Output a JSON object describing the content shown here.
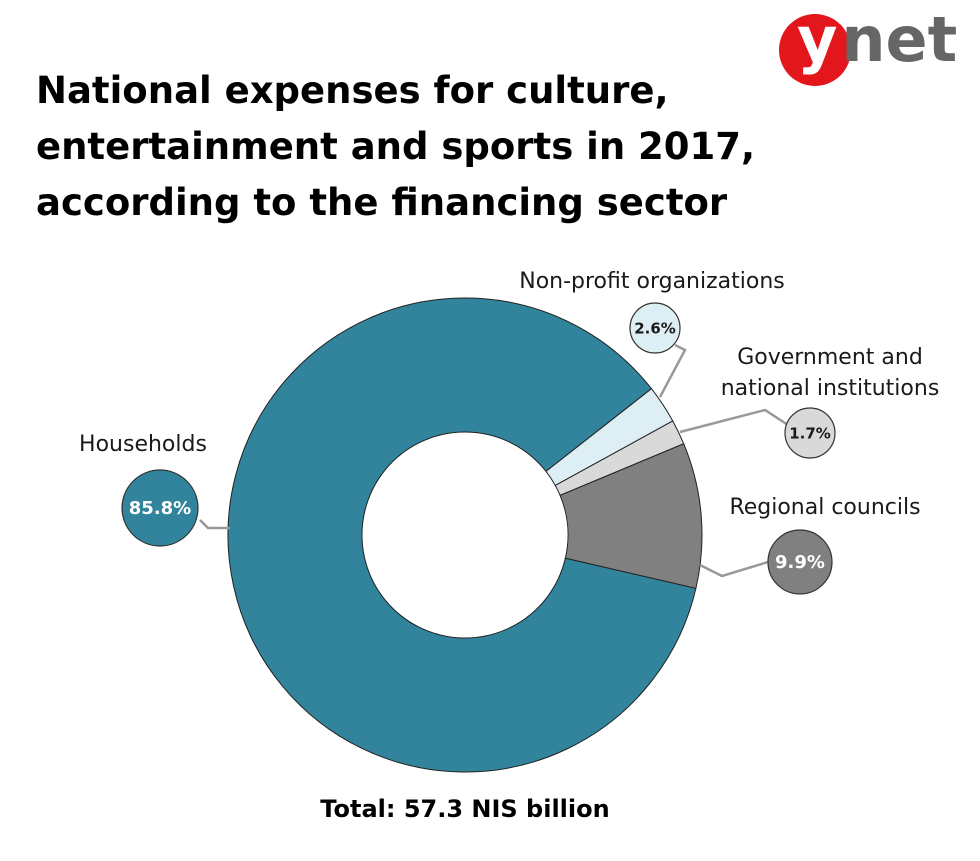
{
  "chart_data": {
    "type": "pie",
    "title": "National expenses for culture, entertainment and sports in 2017, according to the financing sector",
    "brand": "ynet",
    "total": "Total: 57.3 NIS billion",
    "categories": [
      "Households",
      "Non-profit organizations",
      "Government and national institutions",
      "Regional councils"
    ],
    "values": [
      85.8,
      2.6,
      1.7,
      9.9
    ],
    "value_labels": [
      "85.8%",
      "2.6%",
      "1.7%",
      "9.9%"
    ],
    "colors": [
      "#31849b",
      "#ddeef4",
      "#d9d9d9",
      "#808080"
    ],
    "donut": true
  }
}
